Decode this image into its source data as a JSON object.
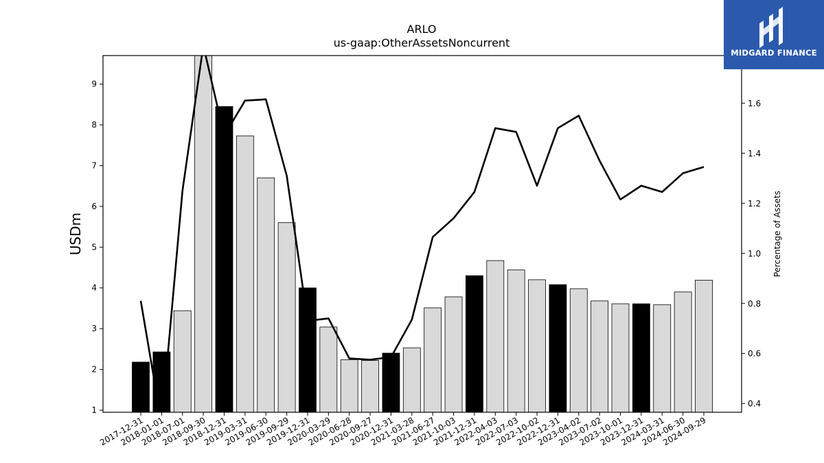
{
  "chart_data": {
    "type": "bar",
    "title": "ARLO",
    "subtitle": "us-gaap:OtherAssetsNoncurrent",
    "ylabel": "USDm",
    "y2label": "Percentage of Assets",
    "ylim": [
      0.95,
      9.7
    ],
    "y2lim": [
      0.365,
      1.79
    ],
    "yticks": [
      1,
      2,
      3,
      4,
      5,
      6,
      7,
      8,
      9
    ],
    "y2ticks": [
      0.4,
      0.6,
      0.8,
      1.0,
      1.2,
      1.4,
      1.6
    ],
    "categories": [
      "2017-12-31",
      "2018-01-01",
      "2018-07-01",
      "2018-09-30",
      "2018-12-31",
      "2019-03-31",
      "2019-06-30",
      "2019-09-29",
      "2019-12-31",
      "2020-03-29",
      "2020-06-28",
      "2020-09-27",
      "2020-12-31",
      "2021-03-28",
      "2021-06-27",
      "2021-10-03",
      "2021-12-31",
      "2022-04-03",
      "2022-07-03",
      "2022-10-02",
      "2022-12-31",
      "2023-04-02",
      "2023-07-02",
      "2023-10-01",
      "2023-12-31",
      "2024-03-31",
      "2024-06-30",
      "2024-09-29"
    ],
    "values": [
      2.18,
      2.43,
      3.44,
      9.75,
      8.45,
      7.73,
      6.7,
      5.6,
      4.0,
      3.04,
      2.24,
      2.22,
      2.4,
      2.53,
      3.51,
      3.78,
      4.3,
      4.67,
      4.44,
      4.2,
      4.08,
      3.98,
      3.68,
      3.61,
      3.61,
      3.59,
      3.9,
      4.19
    ],
    "highlight": [
      true,
      true,
      false,
      false,
      true,
      false,
      false,
      false,
      true,
      false,
      false,
      false,
      true,
      false,
      false,
      false,
      true,
      false,
      false,
      false,
      true,
      false,
      false,
      false,
      true,
      false,
      false,
      false
    ],
    "series": [
      {
        "values": [
          0.81,
          0.32,
          1.25,
          1.83,
          1.47,
          1.61,
          1.615,
          1.31,
          0.73,
          0.74,
          0.58,
          0.575,
          0.585,
          0.735,
          1.065,
          1.14,
          1.245,
          1.5,
          1.485,
          1.27,
          1.5,
          1.55,
          1.37,
          1.215,
          1.27,
          1.245,
          1.32,
          1.345
        ]
      }
    ],
    "bar_colors": {
      "highlight": "#000000",
      "normal": "#d9d9d9",
      "edge": "#000000"
    },
    "line_color": "#000000"
  },
  "logo": {
    "text": "MIDGARD FINANCE",
    "background": "#2b5aad"
  }
}
